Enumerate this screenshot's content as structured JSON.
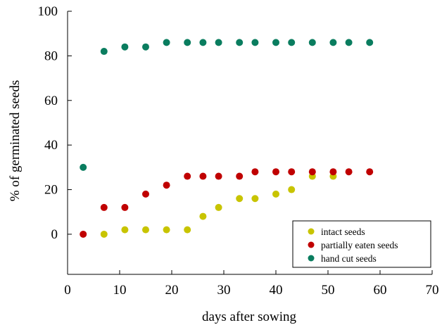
{
  "chart_data": {
    "type": "scatter",
    "title": "",
    "xlabel": "days after sowing",
    "ylabel": "% of germinated seeds",
    "xlim": [
      0,
      70
    ],
    "ylim": [
      -18,
      100
    ],
    "x_ticks": [
      0,
      10,
      20,
      30,
      40,
      50,
      60,
      70
    ],
    "y_ticks": [
      0,
      20,
      40,
      60,
      80,
      100
    ],
    "x_tick_labels": [
      "0",
      "10",
      "20",
      "30",
      "40",
      "50",
      "60",
      "70"
    ],
    "y_tick_labels": [
      "0",
      "20",
      "40",
      "60",
      "80",
      "100"
    ],
    "grid": false,
    "legend_position": "bottom-right",
    "series": [
      {
        "name": "intact seeds",
        "color": "#c8c400",
        "points": [
          {
            "x": 7,
            "y": 0
          },
          {
            "x": 11,
            "y": 2
          },
          {
            "x": 15,
            "y": 2
          },
          {
            "x": 19,
            "y": 2
          },
          {
            "x": 23,
            "y": 2
          },
          {
            "x": 26,
            "y": 8
          },
          {
            "x": 29,
            "y": 12
          },
          {
            "x": 33,
            "y": 16
          },
          {
            "x": 36,
            "y": 16
          },
          {
            "x": 40,
            "y": 18
          },
          {
            "x": 43,
            "y": 20
          },
          {
            "x": 47,
            "y": 26
          },
          {
            "x": 51,
            "y": 26
          }
        ]
      },
      {
        "name": "partially eaten seeds",
        "color": "#c00000",
        "points": [
          {
            "x": 3,
            "y": 0
          },
          {
            "x": 7,
            "y": 12
          },
          {
            "x": 11,
            "y": 12
          },
          {
            "x": 15,
            "y": 18
          },
          {
            "x": 19,
            "y": 22
          },
          {
            "x": 23,
            "y": 26
          },
          {
            "x": 26,
            "y": 26
          },
          {
            "x": 29,
            "y": 26
          },
          {
            "x": 33,
            "y": 26
          },
          {
            "x": 36,
            "y": 28
          },
          {
            "x": 40,
            "y": 28
          },
          {
            "x": 43,
            "y": 28
          },
          {
            "x": 47,
            "y": 28
          },
          {
            "x": 51,
            "y": 28
          },
          {
            "x": 54,
            "y": 28
          },
          {
            "x": 58,
            "y": 28
          }
        ]
      },
      {
        "name": "hand cut seeds",
        "color": "#0a7d5f",
        "points": [
          {
            "x": 3,
            "y": 30
          },
          {
            "x": 7,
            "y": 82
          },
          {
            "x": 11,
            "y": 84
          },
          {
            "x": 15,
            "y": 84
          },
          {
            "x": 19,
            "y": 86
          },
          {
            "x": 23,
            "y": 86
          },
          {
            "x": 26,
            "y": 86
          },
          {
            "x": 29,
            "y": 86
          },
          {
            "x": 33,
            "y": 86
          },
          {
            "x": 36,
            "y": 86
          },
          {
            "x": 40,
            "y": 86
          },
          {
            "x": 43,
            "y": 86
          },
          {
            "x": 47,
            "y": 86
          },
          {
            "x": 51,
            "y": 86
          },
          {
            "x": 54,
            "y": 86
          },
          {
            "x": 58,
            "y": 86
          }
        ]
      }
    ]
  }
}
